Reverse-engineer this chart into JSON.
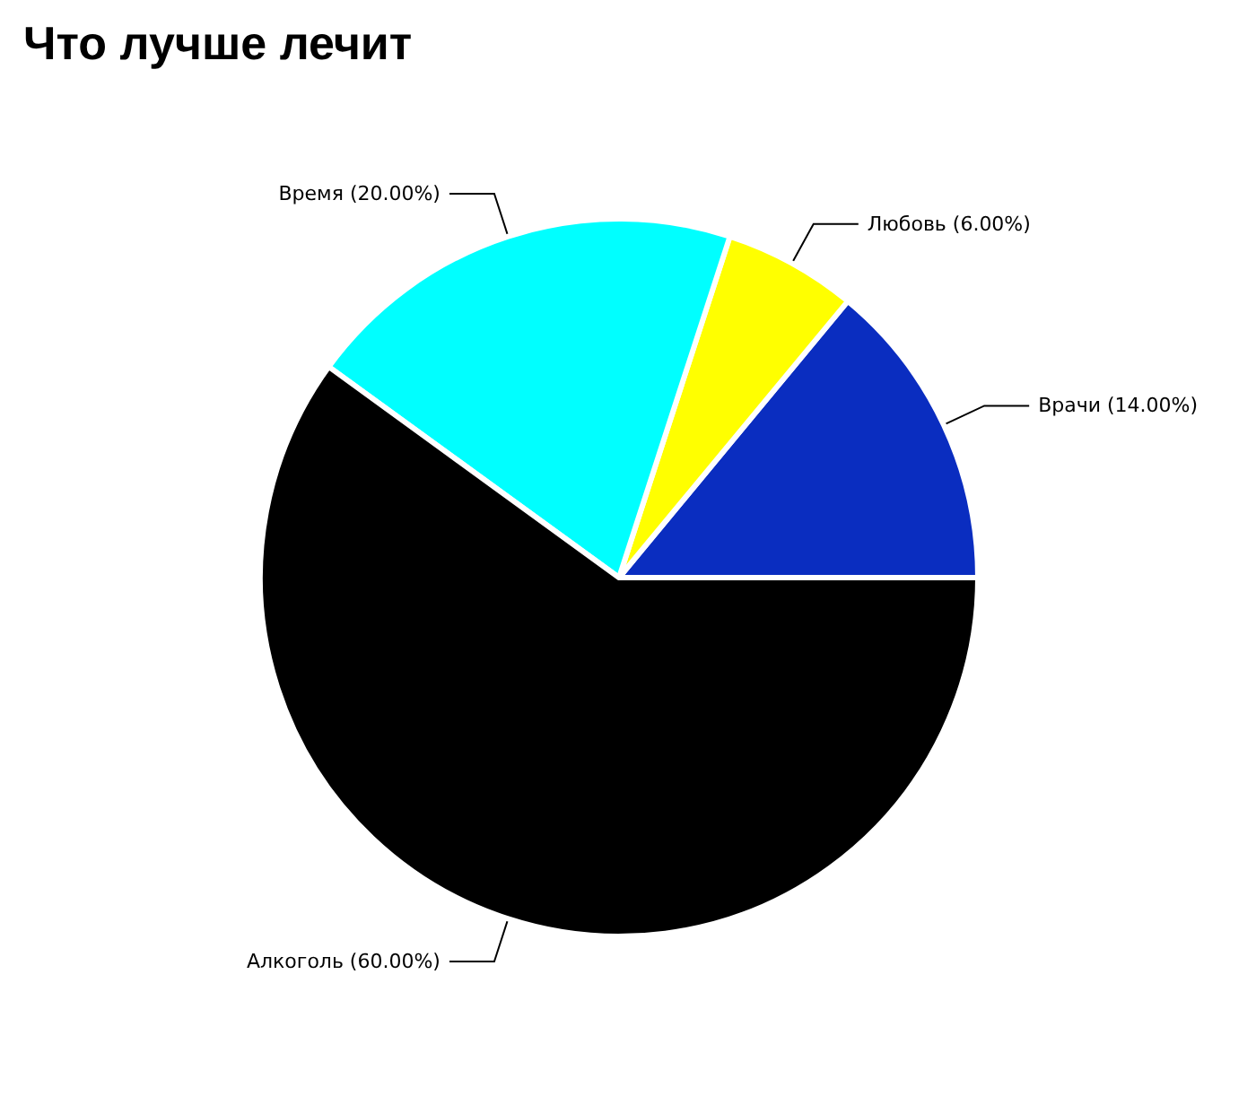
{
  "chart_data": {
    "type": "pie",
    "title": "Что лучше лечит",
    "categories": [
      "Врачи",
      "Любовь",
      "Время",
      "Алкоголь"
    ],
    "values": [
      14,
      6,
      20,
      60
    ],
    "value_labels": [
      "(14.00%)",
      "(6.00%)",
      "(20.00%)",
      "(60.00%)"
    ],
    "colors": [
      "#0a2dc0",
      "#ffff00",
      "#00ffff",
      "#000000"
    ],
    "legend": false
  }
}
